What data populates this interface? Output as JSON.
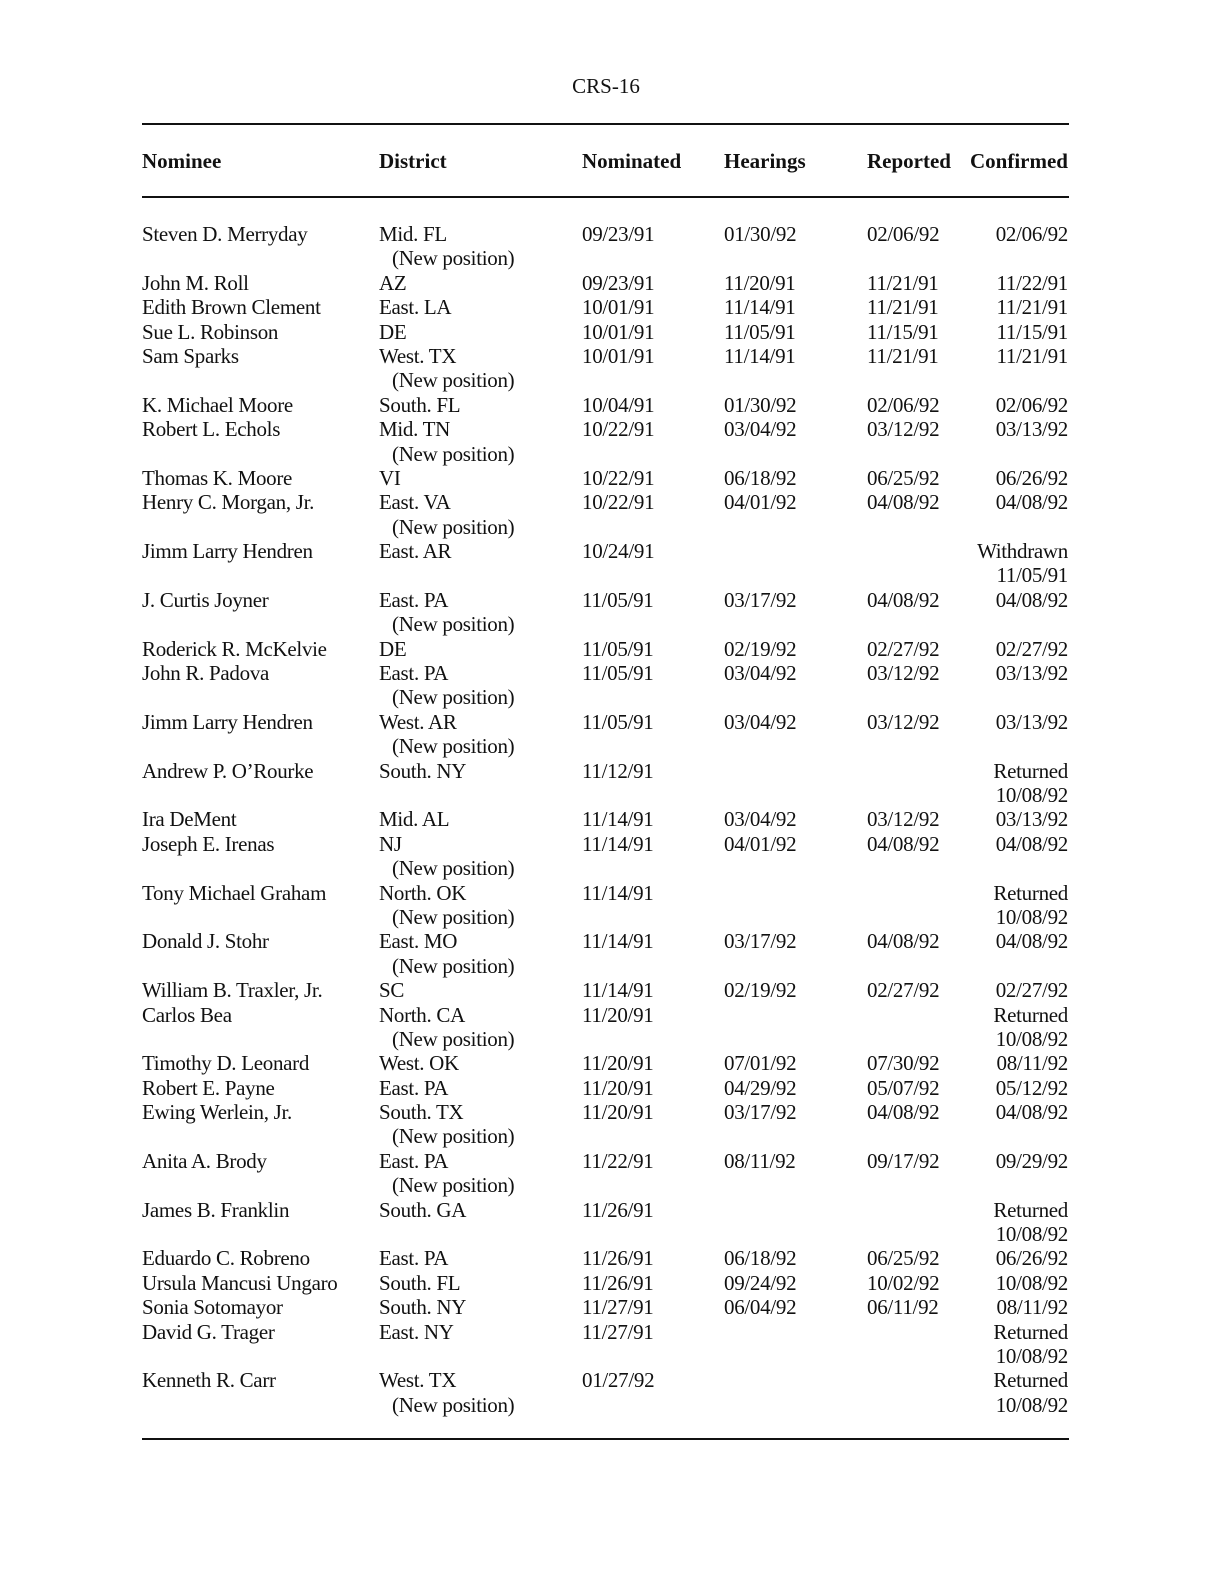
{
  "page_number": "CRS-16",
  "headers": {
    "nominee": "Nominee",
    "district": "District",
    "nominated": "Nominated",
    "hearings": "Hearings",
    "reported": "Reported",
    "confirmed": "Confirmed"
  },
  "rows": [
    {
      "nominee": "Steven D. Merryday",
      "district": "Mid. FL",
      "note": "(New position)",
      "nominated": "09/23/91",
      "hearings": "01/30/92",
      "reported": "02/06/92",
      "confirmed": "02/06/92"
    },
    {
      "nominee": "John M. Roll",
      "district": "AZ",
      "nominated": "09/23/91",
      "hearings": "11/20/91",
      "reported": "11/21/91",
      "confirmed": "11/22/91"
    },
    {
      "nominee": "Edith Brown Clement",
      "district": "East. LA",
      "nominated": "10/01/91",
      "hearings": "11/14/91",
      "reported": "11/21/91",
      "confirmed": "11/21/91"
    },
    {
      "nominee": "Sue L. Robinson",
      "district": "DE",
      "nominated": "10/01/91",
      "hearings": "11/05/91",
      "reported": "11/15/91",
      "confirmed": "11/15/91"
    },
    {
      "nominee": "Sam Sparks",
      "district": "West. TX",
      "note": "(New position)",
      "nominated": "10/01/91",
      "hearings": "11/14/91",
      "reported": "11/21/91",
      "confirmed": "11/21/91"
    },
    {
      "nominee": "K. Michael Moore",
      "district": "South. FL",
      "nominated": "10/04/91",
      "hearings": "01/30/92",
      "reported": "02/06/92",
      "confirmed": "02/06/92"
    },
    {
      "nominee": "Robert  L. Echols",
      "district": "Mid. TN",
      "note": "(New position)",
      "nominated": "10/22/91",
      "hearings": "03/04/92",
      "reported": "03/12/92",
      "confirmed": "03/13/92"
    },
    {
      "nominee": "Thomas K. Moore",
      "district": "VI",
      "nominated": "10/22/91",
      "hearings": "06/18/92",
      "reported": "06/25/92",
      "confirmed": "06/26/92"
    },
    {
      "nominee": "Henry C. Morgan, Jr.",
      "district": "East. VA",
      "note": "(New position)",
      "nominated": "10/22/91",
      "hearings": "04/01/92",
      "reported": "04/08/92",
      "confirmed": "04/08/92"
    },
    {
      "nominee": "Jimm Larry Hendren",
      "district": "East. AR",
      "nominated": "10/24/91",
      "confirmed": "Withdrawn",
      "confirmed_date": "11/05/91"
    },
    {
      "nominee": "J. Curtis Joyner",
      "district": "East. PA",
      "note": "(New position)",
      "nominated": "11/05/91",
      "hearings": "03/17/92",
      "reported": "04/08/92",
      "confirmed": "04/08/92"
    },
    {
      "nominee": "Roderick R. McKelvie",
      "district": "DE",
      "nominated": "11/05/91",
      "hearings": "02/19/92",
      "reported": "02/27/92",
      "confirmed": "02/27/92"
    },
    {
      "nominee": "John R. Padova",
      "district": "East. PA",
      "note": "(New position)",
      "nominated": "11/05/91",
      "hearings": "03/04/92",
      "reported": "03/12/92",
      "confirmed": "03/13/92"
    },
    {
      "nominee": "Jimm Larry Hendren",
      "district": "West. AR",
      "note": "(New position)",
      "nominated": "11/05/91",
      "hearings": "03/04/92",
      "reported": "03/12/92",
      "confirmed": "03/13/92"
    },
    {
      "nominee": "Andrew P. O’Rourke",
      "district": "South. NY",
      "nominated": "11/12/91",
      "confirmed": "Returned",
      "confirmed_date": "10/08/92"
    },
    {
      "nominee": "Ira DeMent",
      "district": "Mid. AL",
      "nominated": "11/14/91",
      "hearings": "03/04/92",
      "reported": "03/12/92",
      "confirmed": "03/13/92"
    },
    {
      "nominee": "Joseph E. Irenas",
      "district": "NJ",
      "note": "(New position)",
      "nominated": "11/14/91",
      "hearings": "04/01/92",
      "reported": "04/08/92",
      "confirmed": "04/08/92"
    },
    {
      "nominee": "Tony Michael Graham",
      "district": "North. OK",
      "note": "(New position)",
      "nominated": "11/14/91",
      "confirmed": "Returned",
      "confirmed_date": "10/08/92"
    },
    {
      "nominee": "Donald J. Stohr",
      "district": "East. MO",
      "note": "(New position)",
      "nominated": "11/14/91",
      "hearings": "03/17/92",
      "reported": "04/08/92",
      "confirmed": "04/08/92"
    },
    {
      "nominee": "William B. Traxler, Jr.",
      "district": "SC",
      "nominated": "11/14/91",
      "hearings": "02/19/92",
      "reported": "02/27/92",
      "confirmed": "02/27/92"
    },
    {
      "nominee": "Carlos Bea",
      "district": "North. CA",
      "note": "(New position)",
      "nominated": "11/20/91",
      "confirmed": "Returned",
      "confirmed_date": "10/08/92"
    },
    {
      "nominee": "Timothy D. Leonard",
      "district": "West. OK",
      "nominated": "11/20/91",
      "hearings": "07/01/92",
      "reported": "07/30/92",
      "confirmed": "08/11/92"
    },
    {
      "nominee": "Robert E. Payne",
      "district": "East. PA",
      "nominated": "11/20/91",
      "hearings": "04/29/92",
      "reported": "05/07/92",
      "confirmed": "05/12/92"
    },
    {
      "nominee": "Ewing Werlein, Jr.",
      "district": "South. TX",
      "note": "(New position)",
      "nominated": "11/20/91",
      "hearings": "03/17/92",
      "reported": "04/08/92",
      "confirmed": "04/08/92"
    },
    {
      "nominee": "Anita A. Brody",
      "district": "East. PA",
      "note": "(New position)",
      "nominated": "11/22/91",
      "hearings": "08/11/92",
      "reported": "09/17/92",
      "confirmed": "09/29/92"
    },
    {
      "nominee": "James B. Franklin",
      "district": "South. GA",
      "nominated": "11/26/91",
      "confirmed": "Returned",
      "confirmed_date": "10/08/92"
    },
    {
      "nominee": "Eduardo C. Robreno",
      "district": "East. PA",
      "nominated": "11/26/91",
      "hearings": "06/18/92",
      "reported": "06/25/92",
      "confirmed": "06/26/92"
    },
    {
      "nominee": "Ursula Mancusi Ungaro",
      "district": "South. FL",
      "nominated": "11/26/91",
      "hearings": "09/24/92",
      "reported": "10/02/92",
      "confirmed": "10/08/92"
    },
    {
      "nominee": "Sonia Sotomayor",
      "district": "South. NY",
      "nominated": "11/27/91",
      "hearings": "06/04/92",
      "reported": "06/11/92",
      "confirmed": "08/11/92"
    },
    {
      "nominee": "David G. Trager",
      "district": "East. NY",
      "nominated": "11/27/91",
      "confirmed": "Returned",
      "confirmed_date": "10/08/92"
    },
    {
      "nominee": "Kenneth R. Carr",
      "district": "West. TX",
      "note": "(New position)",
      "nominated": "01/27/92",
      "confirmed": "Returned",
      "confirmed_date": "10/08/92"
    }
  ]
}
